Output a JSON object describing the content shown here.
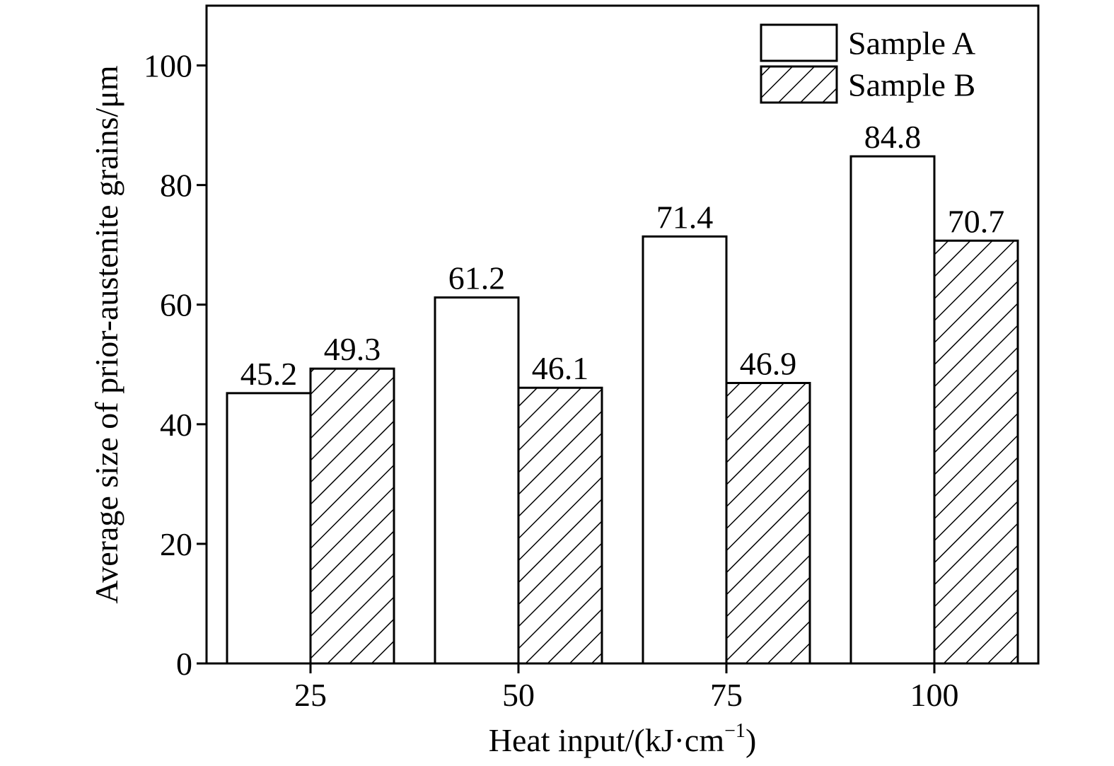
{
  "chart_data": {
    "type": "bar",
    "xlabel": "Heat input/(kJ·cm",
    "xlabel_sup": "−1",
    "xlabel_tail": ")",
    "ylabel": "Average size of prior-austenite grains/μm",
    "categories": [
      "25",
      "50",
      "75",
      "100"
    ],
    "series": [
      {
        "name": "Sample A",
        "fill": "plain",
        "values": [
          45.2,
          61.2,
          71.4,
          84.8
        ],
        "labels": [
          "45.2",
          "61.2",
          "71.4",
          "84.8"
        ]
      },
      {
        "name": "Sample B",
        "fill": "hatched",
        "values": [
          49.3,
          46.1,
          46.9,
          70.7
        ],
        "labels": [
          "49.3",
          "46.1",
          "46.9",
          "70.7"
        ]
      }
    ],
    "ylim": [
      0,
      110
    ],
    "yticks": [
      0,
      20,
      40,
      60,
      80,
      100
    ],
    "ytick_labels": [
      "0",
      "20",
      "40",
      "60",
      "80",
      "100"
    ],
    "grid": false,
    "legend_position": "top-right"
  }
}
